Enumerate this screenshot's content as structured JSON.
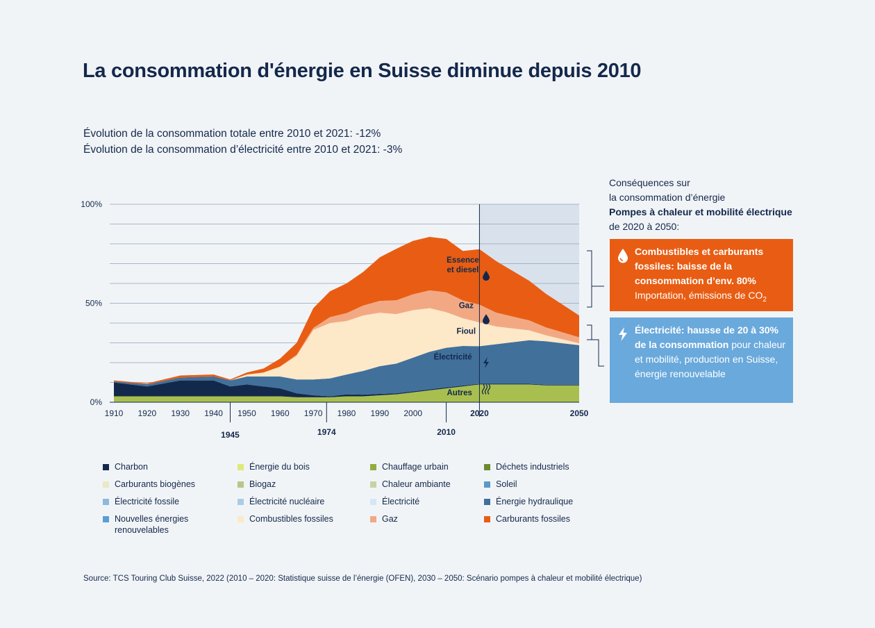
{
  "title": "La consommation d'énergie en Suisse diminue depuis 2010",
  "subtitle_lines": [
    "Évolution de la consommation totale entre 2010 et 2021: -12%",
    "Évolution de la consommation d’électricité entre 2010 et 2021: -3%"
  ],
  "side": {
    "intro_line1": "Conséquences sur",
    "intro_line2": "la consommation d’énergie",
    "intro_bold": "Pompes à chaleur et mobilité électrique",
    "intro_tail": " de 2020 à 2050:",
    "fossil_box": {
      "bold": "Combustibles et carburants fossiles: baisse de la consommation d’env. 80%",
      "text": "Importation, émissions de CO",
      "sub": "2",
      "color": "#e85d13",
      "icon": "drop-icon"
    },
    "elec_box": {
      "bold": "Électricité: hausse de 20 à 30% de la consommation",
      "text": " pour chaleur et mobilité, production en Suisse, énergie renouvelable",
      "color": "#6aa9dc",
      "icon": "lightning-icon"
    }
  },
  "source": "Source: TCS Touring Club Suisse, 2022 (2010 – 2020: Statistique suisse de l’énergie (OFEN), 2030 – 2050: Scénario pompes à chaleur et mobilité électrique)",
  "legend": [
    {
      "label": "Charbon",
      "color": "#13294b"
    },
    {
      "label": "Énergie du bois",
      "color": "#dde97a"
    },
    {
      "label": "Chauffage urbain",
      "color": "#93ac3c"
    },
    {
      "label": "Déchets industriels",
      "color": "#6b8a30"
    },
    {
      "label": "Carburants biogènes",
      "color": "#eae8c6"
    },
    {
      "label": "Biogaz",
      "color": "#b9c68b"
    },
    {
      "label": "Chaleur ambiante",
      "color": "#c7d3a4"
    },
    {
      "label": "Soleil",
      "color": "#5b99c6"
    },
    {
      "label": "Électricité fossile",
      "color": "#8db8df"
    },
    {
      "label": "Électricité nucléaire",
      "color": "#a9cce8"
    },
    {
      "label": "Électricité",
      "color": "#d4e7f6"
    },
    {
      "label": "Énergie hydraulique",
      "color": "#41709b"
    },
    {
      "label": "Nouvelles énergies renouvelables",
      "color": "#5a9fd4"
    },
    {
      "label": "Combustibles fossiles",
      "color": "#fde8c8"
    },
    {
      "label": "Gaz",
      "color": "#f2a983"
    },
    {
      "label": "Carburants fossiles",
      "color": "#e85d13"
    }
  ],
  "chart_data": {
    "type": "area",
    "stacked": true,
    "x_start": 1910,
    "x_end": 2050,
    "x_ticks": [
      "1910",
      "1920",
      "1930",
      "1940",
      "1950",
      "1960",
      "1970",
      "1980",
      "1990",
      "2000",
      "2020",
      "2050"
    ],
    "y_ticks": [
      "0%",
      "50%",
      "100%"
    ],
    "ylim": [
      0,
      100
    ],
    "highlight_years": [
      "1945",
      "1974",
      "2010"
    ],
    "bold_ticks": [
      "2020",
      "2050"
    ],
    "forecast_from": 2020,
    "area_labels": [
      {
        "text": "Essence",
        "year": 2015,
        "value": 72
      },
      {
        "text": "et diesel",
        "year": 2015,
        "value": 67
      },
      {
        "text": "Gaz",
        "year": 2016,
        "value": 49
      },
      {
        "text": "Fioul",
        "year": 2016,
        "value": 36
      },
      {
        "text": "Électricité",
        "year": 2012,
        "value": 23
      },
      {
        "text": "Autres",
        "year": 2014,
        "value": 5
      }
    ],
    "years": [
      1910,
      1920,
      1930,
      1940,
      1945,
      1950,
      1955,
      1960,
      1965,
      1970,
      1975,
      1980,
      1985,
      1990,
      1995,
      2000,
      2005,
      2010,
      2015,
      2020,
      2025,
      2030,
      2035,
      2040,
      2045,
      2050
    ],
    "series": [
      {
        "name": "Autres",
        "color": "#a8bf4f",
        "values": [
          3,
          3,
          3,
          3,
          3,
          3,
          3,
          3,
          2.5,
          2.5,
          2.5,
          3,
          3,
          3.5,
          4,
          5,
          6,
          7,
          8,
          9,
          9,
          9,
          9,
          8.5,
          8.5,
          8.5
        ]
      },
      {
        "name": "Charbon",
        "color": "#13294b",
        "values": [
          7,
          5,
          8,
          8,
          5,
          6,
          5,
          4,
          2,
          1,
          0.5,
          1,
          0.8,
          0.7,
          0.5,
          0.5,
          0.5,
          0.5,
          0.4,
          0.3,
          0.3,
          0.3,
          0.3,
          0.3,
          0.3,
          0.3
        ]
      },
      {
        "name": "Électricité",
        "color": "#41709b",
        "values": [
          0.5,
          1,
          1.5,
          2,
          3,
          4,
          5,
          6,
          7,
          8,
          9,
          10,
          12,
          14,
          15,
          17,
          19,
          20,
          20,
          19,
          20,
          21,
          22,
          22,
          21,
          20
        ]
      },
      {
        "name": "Fioul",
        "color": "#fde8c8",
        "values": [
          0,
          0,
          0,
          0,
          0,
          1,
          2,
          5,
          12,
          25,
          28,
          27,
          28,
          27,
          25,
          24,
          22,
          18,
          14,
          12,
          9,
          7,
          5,
          3,
          2,
          1
        ]
      },
      {
        "name": "Gaz",
        "color": "#f2a983",
        "values": [
          0,
          0,
          0,
          0,
          0,
          0,
          0,
          0,
          0.5,
          1,
          3,
          4,
          5,
          6,
          7,
          8,
          9,
          10,
          9,
          9,
          7,
          6,
          5,
          4,
          3.5,
          3
        ]
      },
      {
        "name": "Essence et diesel",
        "color": "#e85d13",
        "values": [
          0.5,
          0.5,
          1,
          1,
          0.5,
          1,
          2,
          4,
          6,
          10,
          13,
          15,
          17,
          22,
          26,
          27,
          27,
          27,
          25,
          28,
          26,
          23,
          20,
          17,
          14,
          11
        ]
      }
    ]
  }
}
